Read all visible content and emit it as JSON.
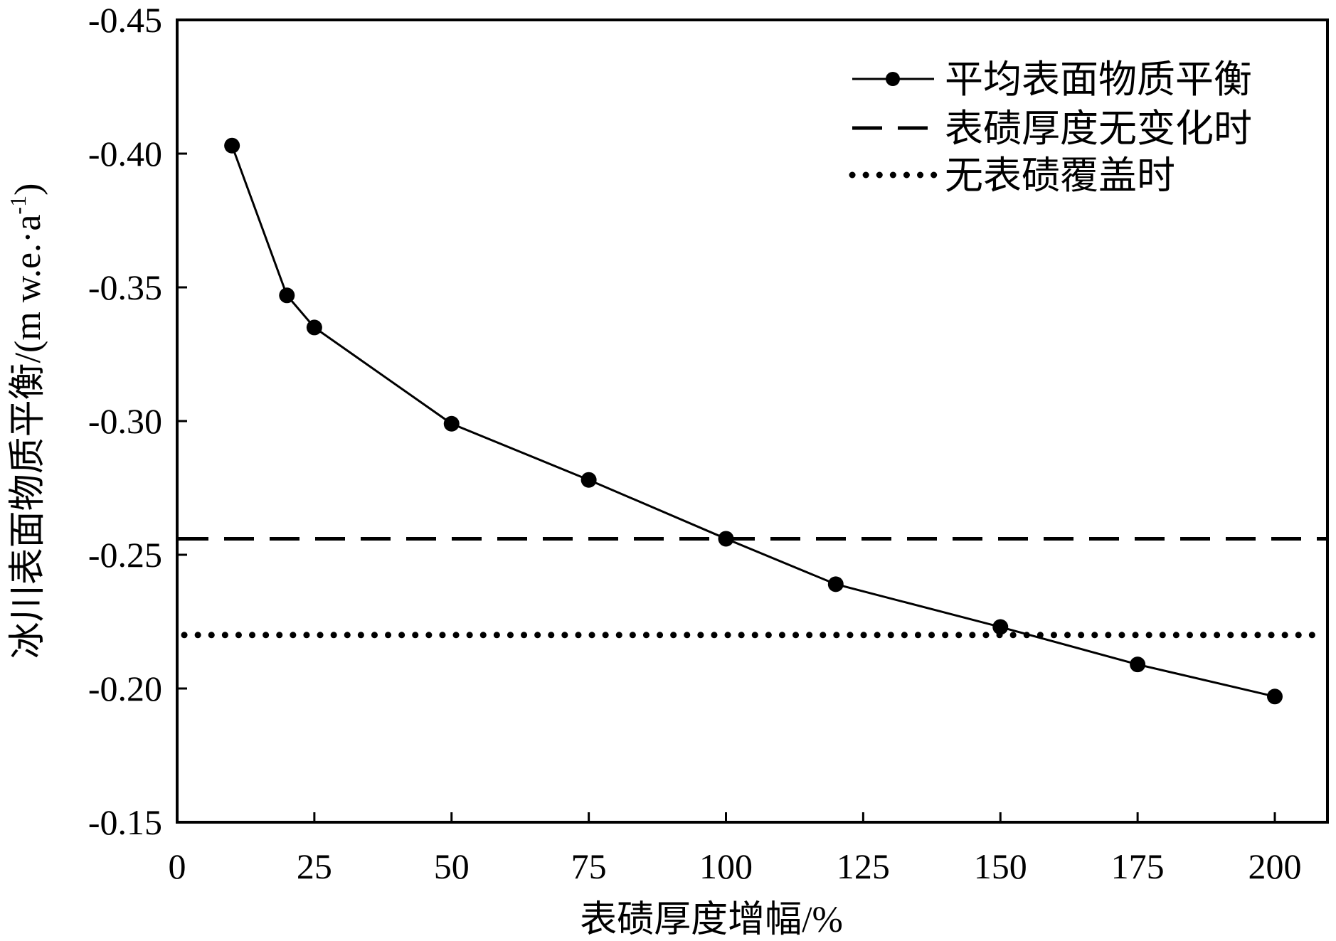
{
  "chart_data": {
    "type": "line",
    "xlabel": "表碛厚度增幅/%",
    "ylabel": "冰川表面物质平衡/(m w.e.·a",
    "ylabel_sup": "-1",
    "ylabel_close": ")",
    "xlim": [
      0,
      210
    ],
    "ylim": [
      -0.45,
      -0.15
    ],
    "y_axis_top_value": -0.45,
    "xticks": [
      0,
      25,
      50,
      75,
      100,
      125,
      150,
      175,
      200
    ],
    "xtick_labels": [
      "0",
      "25",
      "50",
      "75",
      "100",
      "125",
      "150",
      "175",
      "200"
    ],
    "yticks": [
      -0.45,
      -0.4,
      -0.35,
      -0.3,
      -0.25,
      -0.2,
      -0.15
    ],
    "ytick_labels": [
      "-0.45",
      "-0.40",
      "-0.35",
      "-0.30",
      "-0.25",
      "-0.20",
      "-0.15"
    ],
    "grid": false,
    "legend_position": "top-right",
    "series": [
      {
        "name": "平均表面物质平衡",
        "style": "solid-marker",
        "x": [
          10,
          20,
          25,
          50,
          75,
          100,
          120,
          150,
          175,
          200
        ],
        "y": [
          -0.403,
          -0.347,
          -0.335,
          -0.299,
          -0.278,
          -0.256,
          -0.239,
          -0.223,
          -0.209,
          -0.197
        ]
      },
      {
        "name": "表碛厚度无变化时",
        "style": "dashed",
        "value": -0.256
      },
      {
        "name": "无表碛覆盖时",
        "style": "dotted",
        "value": -0.22
      }
    ],
    "color": "#000000"
  }
}
